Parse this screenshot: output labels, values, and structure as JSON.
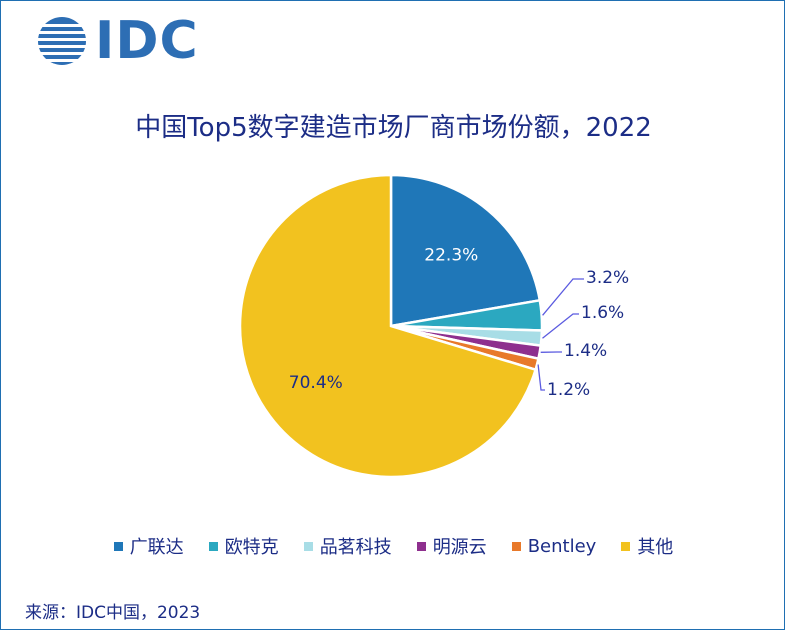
{
  "logo": {
    "text": "IDC"
  },
  "chart_data": {
    "type": "pie",
    "title": "中国Top5数字建造市场厂商市场份额，2022",
    "series": [
      {
        "name": "广联达",
        "value": 22.3,
        "label": "22.3%",
        "color": "#1f77b8"
      },
      {
        "name": "欧特克",
        "value": 3.2,
        "label": "3.2%",
        "color": "#2ba8c0"
      },
      {
        "name": "品茗科技",
        "value": 1.6,
        "label": "1.6%",
        "color": "#a8dde6"
      },
      {
        "name": "明源云",
        "value": 1.4,
        "label": "1.4%",
        "color": "#8e2f8e"
      },
      {
        "name": "Bentley",
        "value": 1.2,
        "label": "1.2%",
        "color": "#e8792a"
      },
      {
        "name": "其他",
        "value": 70.4,
        "label": "70.4%",
        "color": "#f2c21f"
      }
    ],
    "legend_position": "bottom"
  },
  "source": "来源：IDC中国，2023"
}
